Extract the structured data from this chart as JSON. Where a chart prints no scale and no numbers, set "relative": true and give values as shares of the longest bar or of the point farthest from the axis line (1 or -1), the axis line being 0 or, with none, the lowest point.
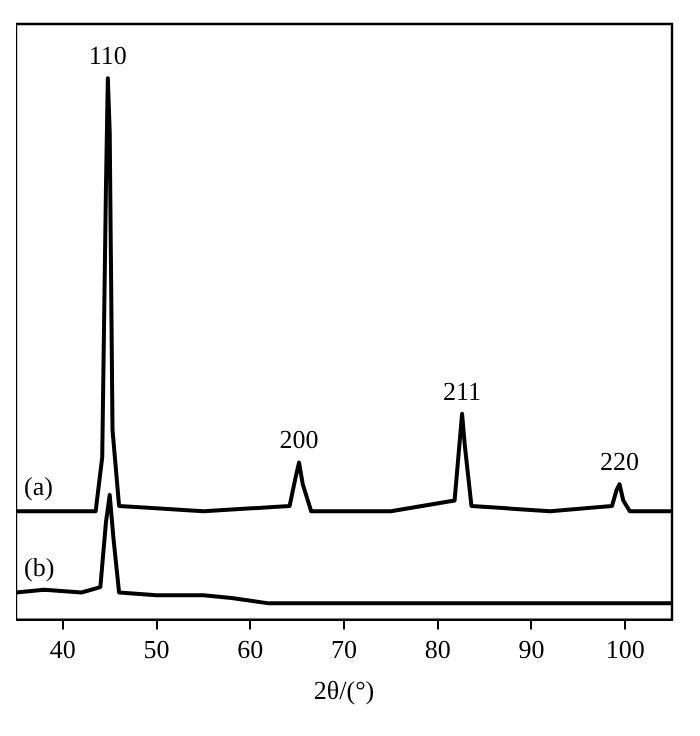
{
  "chart_data": {
    "type": "line",
    "relative": true,
    "xlabel": "2θ/(°)",
    "xlim": [
      35,
      105
    ],
    "xticks": [
      40,
      50,
      60,
      70,
      80,
      90,
      100
    ],
    "tick_labels": "x",
    "grid": false,
    "legend": false,
    "marker": "none",
    "line_style": "solid",
    "series": [
      {
        "name": "(a)",
        "color": "#000000",
        "x": [
          35,
          43.5,
          44.2,
          44.6,
          44.8,
          45.0,
          45.3,
          46,
          55,
          64.2,
          64.8,
          65.2,
          65.6,
          66.5,
          75,
          81.8,
          82.3,
          82.6,
          82.9,
          83.6,
          92,
          98.6,
          99.1,
          99.4,
          99.8,
          100.5,
          105
        ],
        "values": [
          0.2,
          0.2,
          0.3,
          0.8,
          1.0,
          0.9,
          0.35,
          0.21,
          0.2,
          0.21,
          0.26,
          0.29,
          0.25,
          0.2,
          0.2,
          0.22,
          0.32,
          0.38,
          0.32,
          0.21,
          0.2,
          0.21,
          0.24,
          0.25,
          0.22,
          0.2,
          0.2
        ]
      },
      {
        "name": "(b)",
        "color": "#000000",
        "x": [
          35,
          38,
          42,
          44,
          44.6,
          45.0,
          45.4,
          46,
          50,
          55,
          58,
          62,
          70,
          80,
          90,
          105
        ],
        "values": [
          0.05,
          0.055,
          0.05,
          0.06,
          0.18,
          0.23,
          0.15,
          0.05,
          0.045,
          0.045,
          0.04,
          0.03,
          0.03,
          0.03,
          0.03,
          0.03
        ]
      }
    ],
    "annotations": [
      {
        "text": "110",
        "x": 44.8,
        "y": 1.0
      },
      {
        "text": "200",
        "x": 65.2,
        "y": 0.29
      },
      {
        "text": "211",
        "x": 82.6,
        "y": 0.38
      },
      {
        "text": "220",
        "x": 99.4,
        "y": 0.25
      }
    ]
  }
}
